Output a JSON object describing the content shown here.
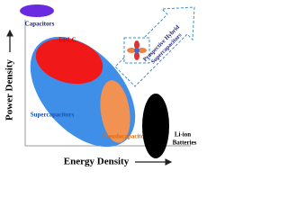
{
  "axes": {
    "y_label": "Power Density",
    "x_label": "Energy Density"
  },
  "regions": {
    "capacitors": "Capacitors",
    "edlc": "EDLC",
    "supercapacitors": "Supercapacitors",
    "pseudocapacitors": "Pseudocapacitors",
    "batteries": [
      "Li-ion",
      "Batteries"
    ]
  },
  "annotation": [
    "Prospective Hybrid",
    "Supercapacitors"
  ]
}
